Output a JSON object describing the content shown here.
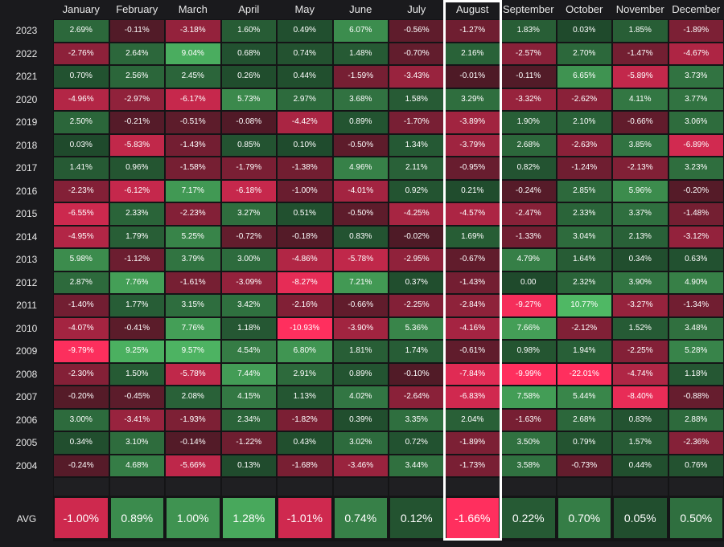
{
  "chart_data": {
    "type": "heatmap",
    "title": "",
    "months": [
      "January",
      "February",
      "March",
      "April",
      "May",
      "June",
      "July",
      "August",
      "September",
      "October",
      "November",
      "December"
    ],
    "years": [
      "2023",
      "2022",
      "2021",
      "2020",
      "2019",
      "2018",
      "2017",
      "2016",
      "2015",
      "2014",
      "2013",
      "2012",
      "2011",
      "2010",
      "2009",
      "2008",
      "2007",
      "2006",
      "2005",
      "2004"
    ],
    "values": [
      [
        "2.69%",
        "-0.11%",
        "-3.18%",
        "1.60%",
        "0.49%",
        "6.07%",
        "-0.56%",
        "-1.27%",
        "1.83%",
        "0.03%",
        "1.85%",
        "-1.89%"
      ],
      [
        "-2.76%",
        "2.64%",
        "9.04%",
        "0.68%",
        "0.74%",
        "1.48%",
        "-0.70%",
        "2.16%",
        "-2.57%",
        "2.70%",
        "-1.47%",
        "-4.67%"
      ],
      [
        "0.70%",
        "2.56%",
        "2.45%",
        "0.26%",
        "0.44%",
        "-1.59%",
        "-3.43%",
        "-0.01%",
        "-0.11%",
        "6.65%",
        "-5.89%",
        "3.73%"
      ],
      [
        "-4.96%",
        "-2.97%",
        "-6.17%",
        "5.73%",
        "2.97%",
        "3.68%",
        "1.58%",
        "3.29%",
        "-3.32%",
        "-2.62%",
        "4.11%",
        "3.77%"
      ],
      [
        "2.50%",
        "-0.21%",
        "-0.51%",
        "-0.08%",
        "-4.42%",
        "0.89%",
        "-1.70%",
        "-3.89%",
        "1.90%",
        "2.10%",
        "-0.66%",
        "3.06%"
      ],
      [
        "0.03%",
        "-5.83%",
        "-1.43%",
        "0.85%",
        "0.10%",
        "-0.50%",
        "1.34%",
        "-3.79%",
        "2.68%",
        "-2.63%",
        "3.85%",
        "-6.89%"
      ],
      [
        "1.41%",
        "0.96%",
        "-1.58%",
        "-1.79%",
        "-1.38%",
        "4.96%",
        "2.11%",
        "-0.95%",
        "0.82%",
        "-1.24%",
        "-2.13%",
        "3.23%"
      ],
      [
        "-2.23%",
        "-6.12%",
        "7.17%",
        "-6.18%",
        "-1.00%",
        "-4.01%",
        "0.92%",
        "0.21%",
        "-0.24%",
        "2.85%",
        "5.96%",
        "-0.20%"
      ],
      [
        "-6.55%",
        "2.33%",
        "-2.23%",
        "3.27%",
        "0.51%",
        "-0.50%",
        "-4.25%",
        "-4.57%",
        "-2.47%",
        "2.33%",
        "3.37%",
        "-1.48%"
      ],
      [
        "-4.95%",
        "1.79%",
        "5.25%",
        "-0.72%",
        "-0.18%",
        "0.83%",
        "-0.02%",
        "1.69%",
        "-1.33%",
        "3.04%",
        "2.13%",
        "-3.12%"
      ],
      [
        "5.98%",
        "-1.12%",
        "3.79%",
        "3.00%",
        "-4.86%",
        "-5.78%",
        "-2.95%",
        "-0.67%",
        "4.79%",
        "1.64%",
        "0.34%",
        "0.63%"
      ],
      [
        "2.87%",
        "7.76%",
        "-1.61%",
        "-3.09%",
        "-8.27%",
        "7.21%",
        "0.37%",
        "-1.43%",
        "0.00",
        "2.32%",
        "3.90%",
        "4.90%"
      ],
      [
        "-1.40%",
        "1.77%",
        "3.15%",
        "3.42%",
        "-2.16%",
        "-0.66%",
        "-2.25%",
        "-2.84%",
        "-9.27%",
        "10.77%",
        "-3.27%",
        "-1.34%"
      ],
      [
        "-4.07%",
        "-0.41%",
        "7.76%",
        "1.18%",
        "-10.93%",
        "-3.90%",
        "5.36%",
        "-4.16%",
        "7.66%",
        "-2.12%",
        "1.52%",
        "3.48%"
      ],
      [
        "-9.79%",
        "9.25%",
        "9.57%",
        "4.54%",
        "6.80%",
        "1.81%",
        "1.74%",
        "-0.61%",
        "0.98%",
        "1.94%",
        "-2.25%",
        "5.28%"
      ],
      [
        "-2.30%",
        "1.50%",
        "-5.78%",
        "7.44%",
        "2.91%",
        "0.89%",
        "-0.10%",
        "-7.84%",
        "-9.99%",
        "-22.01%",
        "-4.74%",
        "1.18%"
      ],
      [
        "-0.20%",
        "-0.45%",
        "2.08%",
        "4.15%",
        "1.13%",
        "4.02%",
        "-2.64%",
        "-6.83%",
        "7.58%",
        "5.44%",
        "-8.40%",
        "-0.88%"
      ],
      [
        "3.00%",
        "-3.41%",
        "-1.93%",
        "2.34%",
        "-1.82%",
        "0.39%",
        "3.35%",
        "2.04%",
        "-1.63%",
        "2.68%",
        "0.83%",
        "2.88%"
      ],
      [
        "0.34%",
        "3.10%",
        "-0.14%",
        "-1.22%",
        "0.43%",
        "3.02%",
        "0.72%",
        "-1.89%",
        "3.50%",
        "0.79%",
        "1.57%",
        "-2.36%"
      ],
      [
        "-0.24%",
        "4.68%",
        "-5.66%",
        "0.13%",
        "-1.68%",
        "-3.46%",
        "3.44%",
        "-1.73%",
        "3.58%",
        "-0.73%",
        "0.44%",
        "0.76%"
      ]
    ],
    "avg_label": "AVG",
    "averages": [
      "-1.00%",
      "0.89%",
      "1.00%",
      "1.28%",
      "-1.01%",
      "0.74%",
      "0.12%",
      "-1.66%",
      "0.22%",
      "0.70%",
      "0.05%",
      "0.50%"
    ],
    "highlighted_month": "August",
    "colors": {
      "background": "#1a1a1d",
      "grid": "#141416",
      "negative_base": "#4d1a26",
      "negative_strong": "#ff2f5e",
      "positive_base": "#1f4a2c",
      "positive_strong": "#4fb864",
      "highlight": "#ffffff"
    }
  }
}
